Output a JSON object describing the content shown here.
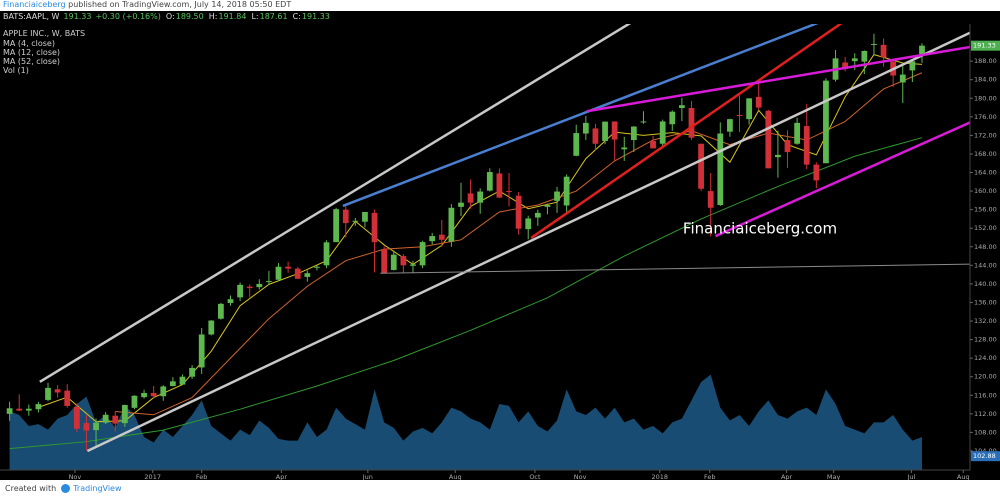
{
  "header": {
    "author": "Financiaiceberg",
    "published": "published on TradingView.com, July 14, 2018 05:50 EDT",
    "symbol": "BATS:AAPL, W",
    "last": "191.33",
    "change": "+0.30 (+0.16%)",
    "ohlc": [
      {
        "label": "O:",
        "value": "189.50"
      },
      {
        "label": "H:",
        "value": "191.84"
      },
      {
        "label": "L:",
        "value": "187.61"
      },
      {
        "label": "C:",
        "value": "191.33"
      }
    ]
  },
  "footer": {
    "created": "Created with",
    "brand": "TradingView"
  },
  "chart_data": {
    "type": "candlestick",
    "title": "APPLE INC., W, BATS",
    "up_color": "#5fb84f",
    "down_color": "#d23038",
    "open": [
      112.0,
      113.1,
      112.7,
      113.0,
      115.0,
      117.3,
      117.0,
      113.5,
      110.0,
      108.5,
      110.1,
      111.6,
      110.0,
      113.3,
      115.6,
      116.5,
      115.8,
      118.0,
      118.3,
      120.0,
      122.0,
      129.1,
      132.5,
      135.9,
      137.1,
      139.4,
      139.3,
      140.4,
      140.9,
      143.7,
      143.3,
      141.5,
      143.5,
      144.0,
      149.0,
      156.0,
      153.4,
      153.4,
      155.3,
      147.5,
      143.0,
      146.0,
      143.9,
      144.0,
      149.2,
      150.6,
      149.1,
      156.6,
      159.5,
      157.5,
      160.1,
      163.8,
      160.0,
      159.0,
      151.8,
      154.3,
      156.6,
      157.9,
      156.9,
      167.6,
      172.4,
      173.5,
      170.8,
      175.0,
      169.0,
      171.0,
      174.9,
      170.8,
      170.2,
      174.4,
      177.9,
      177.9,
      170.2,
      160.0,
      157.0,
      172.8,
      176.4,
      175.5,
      180.3,
      177.3,
      167.3,
      171.0,
      170.2,
      174.0,
      165.7,
      166.0,
      184.0,
      187.7,
      188.0,
      187.9,
      191.6,
      191.5,
      187.9,
      183.4,
      186.0,
      189.5
    ],
    "high": [
      114.6,
      116.2,
      114.0,
      114.6,
      118.7,
      118.2,
      118.4,
      114.2,
      111.7,
      111.0,
      112.4,
      112.5,
      114.0,
      116.0,
      117.2,
      118.0,
      118.2,
      119.9,
      120.5,
      122.5,
      130.5,
      132.2,
      135.9,
      137.5,
      140.3,
      139.9,
      141.0,
      142.8,
      144.5,
      144.8,
      143.6,
      142.9,
      144.0,
      149.4,
      156.4,
      156.7,
      154.2,
      155.5,
      156.0,
      148.1,
      147.2,
      146.4,
      145.0,
      149.3,
      151.0,
      153.8,
      157.2,
      161.8,
      162.5,
      160.6,
      164.9,
      164.9,
      163.9,
      159.8,
      154.7,
      156.0,
      157.3,
      160.9,
      163.6,
      174.3,
      176.2,
      174.5,
      175.0,
      175.0,
      171.7,
      174.0,
      177.2,
      171.9,
      175.4,
      177.4,
      180.1,
      179.4,
      170.2,
      163.9,
      174.8,
      175.6,
      180.6,
      180.0,
      183.5,
      177.5,
      173.0,
      173.1,
      175.8,
      178.8,
      166.2,
      184.3,
      190.4,
      188.9,
      189.7,
      190.3,
      193.9,
      192.9,
      188.4,
      187.3,
      188.0,
      191.84
    ],
    "low": [
      110.5,
      112.6,
      111.6,
      112.3,
      114.7,
      115.5,
      113.3,
      108.1,
      104.1,
      105.0,
      109.8,
      108.2,
      109.2,
      113.0,
      115.3,
      115.4,
      114.8,
      117.9,
      118.2,
      119.5,
      120.6,
      128.9,
      132.3,
      135.3,
      136.3,
      137.1,
      138.8,
      139.8,
      140.6,
      142.4,
      141.1,
      140.5,
      142.9,
      143.4,
      149.0,
      150.0,
      152.5,
      152.2,
      142.5,
      142.2,
      142.9,
      142.3,
      142.3,
      143.4,
      148.5,
      148.0,
      148.0,
      154.6,
      156.2,
      155.1,
      159.9,
      158.5,
      156.7,
      150.6,
      149.6,
      152.5,
      155.0,
      155.3,
      155.3,
      167.5,
      171.0,
      168.8,
      170.1,
      166.5,
      166.5,
      168.4,
      174.5,
      169.2,
      169.7,
      173.0,
      175.1,
      171.0,
      160.0,
      150.2,
      156.8,
      171.7,
      172.7,
      174.3,
      177.6,
      164.9,
      162.9,
      165.0,
      170.0,
      164.7,
      160.6,
      166.0,
      183.6,
      185.8,
      186.1,
      185.2,
      189.3,
      186.8,
      182.4,
      178.97,
      183.5,
      187.61
    ],
    "close": [
      113.2,
      112.7,
      113.1,
      114.1,
      117.6,
      116.6,
      113.7,
      108.8,
      108.4,
      110.1,
      111.8,
      109.9,
      113.9,
      115.9,
      116.5,
      115.8,
      117.9,
      119.0,
      120.0,
      121.9,
      129.1,
      132.1,
      135.7,
      136.7,
      139.8,
      139.1,
      139.99,
      140.6,
      143.7,
      143.3,
      141.1,
      142.3,
      143.7,
      148.96,
      156.1,
      153.1,
      153.6,
      155.5,
      148.98,
      142.3,
      146.3,
      144.0,
      144.2,
      149.0,
      150.3,
      149.5,
      156.4,
      157.5,
      157.5,
      159.9,
      164.1,
      158.6,
      159.9,
      151.9,
      154.1,
      155.3,
      156.99,
      159.9,
      163.1,
      172.5,
      174.7,
      170.2,
      174.97,
      171.1,
      169.4,
      173.9,
      175.0,
      169.2,
      175.0,
      177.1,
      178.5,
      171.5,
      160.5,
      156.4,
      172.4,
      175.5,
      176.2,
      179.98,
      178.0,
      164.9,
      167.8,
      168.4,
      174.7,
      165.7,
      162.3,
      183.8,
      188.6,
      186.3,
      188.6,
      190.2,
      191.7,
      188.8,
      184.9,
      185.1,
      187.97,
      191.33
    ],
    "xlim": [
      -1,
      100
    ],
    "xticks": [
      {
        "value": 6.8,
        "label": "Nov"
      },
      {
        "value": 14.9,
        "label": "2017"
      },
      {
        "value": 20,
        "label": "Feb"
      },
      {
        "value": 28.3,
        "label": "Apr"
      },
      {
        "value": 37.3,
        "label": "Jun"
      },
      {
        "value": 46.4,
        "label": "Aug"
      },
      {
        "value": 54.7,
        "label": "Oct"
      },
      {
        "value": 59.4,
        "label": "Nov"
      },
      {
        "value": 67.7,
        "label": "2018"
      },
      {
        "value": 72.9,
        "label": "Feb"
      },
      {
        "value": 80.9,
        "label": "Apr"
      },
      {
        "value": 85.8,
        "label": "May"
      },
      {
        "value": 93.9,
        "label": "Jul"
      },
      {
        "value": 99.3,
        "label": "Aug"
      }
    ],
    "ylim": [
      99.9,
      196
    ],
    "yticks": [
      {
        "value": 104,
        "label": "104.00"
      },
      {
        "value": 108,
        "label": "108.00"
      },
      {
        "value": 112,
        "label": "112.00"
      },
      {
        "value": 116,
        "label": "116.00"
      },
      {
        "value": 120,
        "label": "120.00"
      },
      {
        "value": 124,
        "label": "124.00"
      },
      {
        "value": 128,
        "label": "128.00"
      },
      {
        "value": 132,
        "label": "132.00"
      },
      {
        "value": 136,
        "label": "136.00"
      },
      {
        "value": 140,
        "label": "140.00"
      },
      {
        "value": 144,
        "label": "144.00"
      },
      {
        "value": 148,
        "label": "148.00"
      },
      {
        "value": 152,
        "label": "152.00"
      },
      {
        "value": 156,
        "label": "156.00"
      },
      {
        "value": 160,
        "label": "160.00"
      },
      {
        "value": 164,
        "label": "164.00"
      },
      {
        "value": 168,
        "label": "168.00"
      },
      {
        "value": 172,
        "label": "172.00"
      },
      {
        "value": 176,
        "label": "176.00"
      },
      {
        "value": 180,
        "label": "180.00"
      },
      {
        "value": 184,
        "label": "184.00"
      },
      {
        "value": 188,
        "label": "188.00"
      }
    ],
    "grid": false,
    "badges": [
      {
        "value": 191.33,
        "color": "#4caf50"
      },
      {
        "value": 102.88,
        "color": "#2a6fb8"
      }
    ],
    "series": [
      {
        "name": "MA (4, close)",
        "color": "#d8c51c",
        "x": [
          3,
          6,
          9,
          12,
          15,
          18,
          21,
          24,
          27,
          30,
          33,
          36,
          39,
          42,
          45,
          48,
          51,
          54,
          57,
          60,
          63,
          66,
          69,
          72,
          75,
          78,
          81,
          84,
          87,
          90,
          93,
          95
        ],
        "values": [
          113.4,
          115.6,
          110.3,
          110.5,
          115.5,
          118.3,
          125.5,
          135.3,
          139.9,
          142.2,
          145.0,
          153.5,
          148.4,
          144.2,
          148.3,
          156.7,
          160.0,
          156.2,
          157.6,
          167.0,
          172.7,
          172.0,
          172.6,
          171.9,
          166.2,
          177.4,
          170.0,
          167.8,
          180.3,
          189.4,
          187.6,
          187.3
        ]
      },
      {
        "name": "MA (12, close)",
        "color": "#d0642a",
        "x": [
          11,
          15,
          19,
          23,
          27,
          31,
          35,
          39,
          43,
          47,
          51,
          55,
          59,
          63,
          67,
          71,
          75,
          79,
          83,
          87,
          91,
          95
        ],
        "values": [
          112.5,
          111.8,
          115.5,
          124.0,
          132.5,
          139.5,
          145.0,
          147.5,
          148.0,
          149.5,
          155.5,
          157.0,
          160.0,
          166.5,
          171.0,
          173.0,
          170.0,
          172.5,
          171.0,
          175.0,
          182.0,
          185.5
        ]
      },
      {
        "name": "MA (52, close)",
        "color": "#2f9a2f",
        "x": [
          0,
          8,
          16,
          24,
          32,
          40,
          48,
          56,
          64,
          72,
          80,
          88,
          95
        ],
        "values": [
          104.5,
          106.0,
          108.5,
          113.0,
          118.0,
          123.5,
          130.0,
          137.0,
          146.0,
          154.0,
          161.0,
          167.5,
          171.5
        ]
      }
    ],
    "volume": {
      "name": "Vol (1)",
      "color": "#1f5f8f",
      "vlim": [
        0,
        300
      ],
      "values": [
        160,
        150,
        120,
        125,
        110,
        140,
        150,
        180,
        200,
        130,
        150,
        115,
        175,
        150,
        90,
        75,
        110,
        90,
        120,
        150,
        190,
        120,
        100,
        80,
        110,
        95,
        135,
        115,
        85,
        80,
        80,
        130,
        90,
        110,
        170,
        140,
        125,
        110,
        220,
        130,
        115,
        80,
        105,
        115,
        100,
        130,
        170,
        160,
        140,
        130,
        110,
        180,
        175,
        130,
        160,
        120,
        105,
        135,
        220,
        160,
        150,
        170,
        140,
        170,
        130,
        140,
        110,
        120,
        100,
        130,
        140,
        190,
        240,
        260,
        170,
        135,
        150,
        120,
        160,
        190,
        150,
        140,
        160,
        170,
        150,
        220,
        180,
        120,
        110,
        100,
        130,
        130,
        150,
        110,
        80,
        90
      ]
    },
    "drawings": [
      {
        "color": "#c8c8c8",
        "x": [
          3.15,
          65.5
        ],
        "values": [
          118.9,
          197.3
        ]
      },
      {
        "color": "#c8c8c8",
        "x": [
          8.1,
          101
        ],
        "values": [
          104.0,
          195.1
        ]
      },
      {
        "color": "#4a7fd0",
        "x": [
          34.7,
          85.5
        ],
        "values": [
          156.8,
          197.3
        ]
      },
      {
        "color": "#e0201f",
        "x": [
          54.3,
          87.4
        ],
        "values": [
          149.9,
          197.3
        ]
      },
      {
        "color": "#d81bd8",
        "x": [
          60.1,
          101
        ],
        "values": [
          177.2,
          191.4
        ]
      },
      {
        "color": "#d81bd8",
        "x": [
          73.5,
          101
        ],
        "values": [
          150.3,
          175.7
        ]
      },
      {
        "color": "#8a8a8a",
        "x": [
          38.6,
          101
        ],
        "values": [
          142.3,
          144.3
        ]
      }
    ],
    "watermark": "Financiaiceberg.com"
  }
}
